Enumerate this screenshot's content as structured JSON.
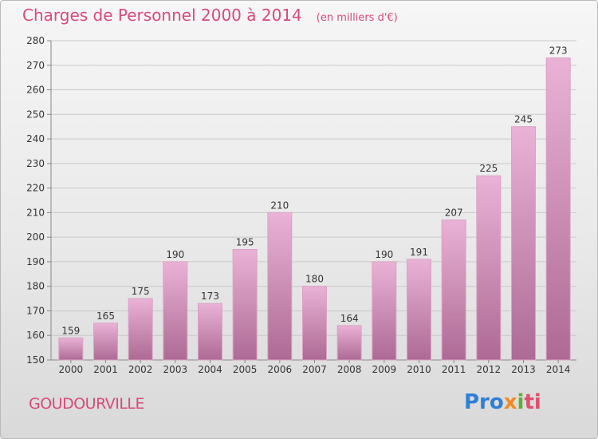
{
  "header": {
    "title": "Charges de Personnel 2000 à 2014",
    "unit": "(en milliers d'€)"
  },
  "footer": {
    "city": "GOUDOURVILLE",
    "brand_parts": [
      "Pro",
      "x",
      "i",
      "ti"
    ]
  },
  "colors": {
    "title": "#d84a7c",
    "bar_top": "#eab2d6",
    "bar_bottom": "#ad6a94",
    "bar_edge": "#dba2c4"
  },
  "chart_data": {
    "type": "bar",
    "title": "Charges de Personnel 2000 à 2014",
    "categories": [
      "2000",
      "2001",
      "2002",
      "2003",
      "2004",
      "2005",
      "2006",
      "2007",
      "2008",
      "2009",
      "2010",
      "2011",
      "2012",
      "2013",
      "2014"
    ],
    "values": [
      159,
      165,
      175,
      190,
      173,
      195,
      210,
      180,
      164,
      190,
      191,
      207,
      225,
      245,
      273
    ],
    "ylim": [
      150,
      280
    ],
    "yticks": [
      150,
      160,
      170,
      180,
      190,
      200,
      210,
      220,
      230,
      240,
      250,
      260,
      270,
      280
    ],
    "grid": true,
    "data_labels": true
  }
}
